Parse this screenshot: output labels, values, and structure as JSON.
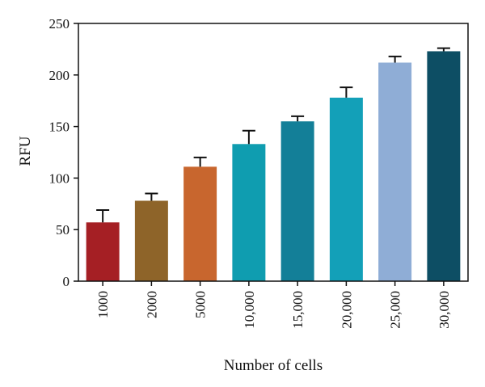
{
  "chart_data": {
    "type": "bar",
    "title": "",
    "xlabel": "Number of cells",
    "ylabel": "RFU",
    "categories": [
      "1000",
      "2000",
      "5000",
      "10,000",
      "15,000",
      "20,000",
      "25,000",
      "30,000"
    ],
    "values": [
      57,
      78,
      111,
      133,
      155,
      178,
      212,
      223
    ],
    "error_upper": [
      12,
      7,
      9,
      13,
      5,
      10,
      6,
      3
    ],
    "colors": [
      "#a51f24",
      "#8e6429",
      "#c8662e",
      "#0f9db0",
      "#137f98",
      "#13a0b8",
      "#8fadd6",
      "#0d4e64"
    ],
    "ylim": [
      0,
      250
    ],
    "yticks": [
      0,
      50,
      100,
      150,
      200,
      250
    ],
    "grid": false,
    "legend": "none"
  }
}
